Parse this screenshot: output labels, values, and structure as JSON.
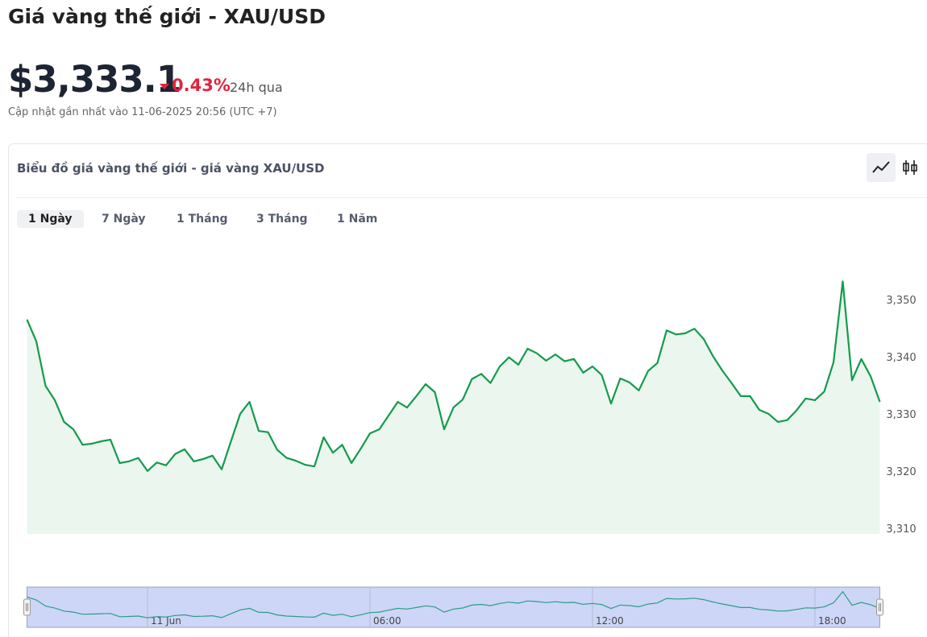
{
  "header": {
    "title": "Giá vàng thế giới - XAU/USD",
    "price": "$3,333.1",
    "change": "0.43%",
    "change_period": "24h qua",
    "updated": "Cập nhật gần nhất vào 11-06-2025 20:56 (UTC +7)"
  },
  "card": {
    "title": "Biểu đồ giá vàng thế giới - giá vàng XAU/USD",
    "tabs": [
      "1 Ngày",
      "7 Ngày",
      "1 Tháng",
      "3 Tháng",
      "1 Năm"
    ],
    "active_tab": 0
  },
  "chart_data": {
    "type": "area",
    "color": "#149a4c",
    "fill": "#ebf6ef",
    "grid": false,
    "x": [
      -3.25,
      -3,
      -2.75,
      -2.5,
      -2.25,
      -2,
      -1.75,
      -1.5,
      -1.25,
      -1,
      -0.75,
      -0.5,
      -0.25,
      0,
      0.25,
      0.5,
      0.75,
      1,
      1.25,
      1.5,
      1.75,
      2,
      2.25,
      2.5,
      2.75,
      3,
      3.25,
      3.5,
      3.75,
      4,
      4.25,
      4.5,
      4.75,
      5,
      5.25,
      5.5,
      5.75,
      6,
      6.25,
      6.5,
      6.75,
      7,
      7.25,
      7.5,
      7.75,
      8,
      8.25,
      8.5,
      8.75,
      9,
      9.25,
      9.5,
      9.75,
      10,
      10.25,
      10.5,
      10.75,
      11,
      11.25,
      11.5,
      11.75,
      12,
      12.25,
      12.5,
      12.75,
      13,
      13.25,
      13.5,
      13.75,
      14,
      14.25,
      14.5,
      14.75,
      15,
      15.25,
      15.5,
      15.75,
      16,
      16.25,
      16.5,
      16.75,
      17,
      17.25,
      17.5,
      17.75,
      18,
      18.25,
      18.5,
      18.75,
      19,
      19.25,
      19.5,
      19.75
    ],
    "values": [
      3346.5,
      3342.7,
      3334.9,
      3332.4,
      3328.6,
      3327.3,
      3324.6,
      3324.8,
      3325.2,
      3325.5,
      3321.4,
      3321.7,
      3322.3,
      3320.0,
      3321.5,
      3321.0,
      3323.0,
      3323.8,
      3321.7,
      3322.1,
      3322.7,
      3320.3,
      3325.2,
      3330.0,
      3332.1,
      3327.0,
      3326.8,
      3323.7,
      3322.3,
      3321.8,
      3321.1,
      3320.8,
      3325.9,
      3323.2,
      3324.6,
      3321.4,
      3323.9,
      3326.6,
      3327.3,
      3329.7,
      3332.1,
      3331.1,
      3333.1,
      3335.2,
      3333.8,
      3327.3,
      3331.1,
      3332.5,
      3336.1,
      3337.0,
      3335.4,
      3338.3,
      3339.9,
      3338.6,
      3341.4,
      3340.6,
      3339.3,
      3340.4,
      3339.2,
      3339.6,
      3337.2,
      3338.3,
      3336.8,
      3331.8,
      3336.2,
      3335.5,
      3334.1,
      3337.5,
      3338.9,
      3344.6,
      3343.9,
      3344.1,
      3344.9,
      3343.1,
      3340.1,
      3337.6,
      3335.4,
      3333.1,
      3333.1,
      3330.7,
      3330.0,
      3328.6,
      3328.9,
      3330.6,
      3332.7,
      3332.4,
      3333.9,
      3339.0,
      3353.2,
      3335.9,
      3339.6,
      3336.6,
      3332.1
    ],
    "xlim": [
      -3.25,
      19.75
    ],
    "xticks": [
      {
        "value": 0,
        "label": "11 Jun"
      },
      {
        "value": 6,
        "label": "06:00"
      },
      {
        "value": 12,
        "label": "12:00"
      },
      {
        "value": 18,
        "label": "18:00"
      }
    ],
    "ylim": [
      3309,
      3360
    ],
    "yticks": [
      {
        "value": 3310,
        "label": "3,310"
      },
      {
        "value": 3320,
        "label": "3,320"
      },
      {
        "value": 3330,
        "label": "3,330"
      },
      {
        "value": 3340,
        "label": "3,340"
      },
      {
        "value": 3350,
        "label": "3,350"
      }
    ]
  }
}
